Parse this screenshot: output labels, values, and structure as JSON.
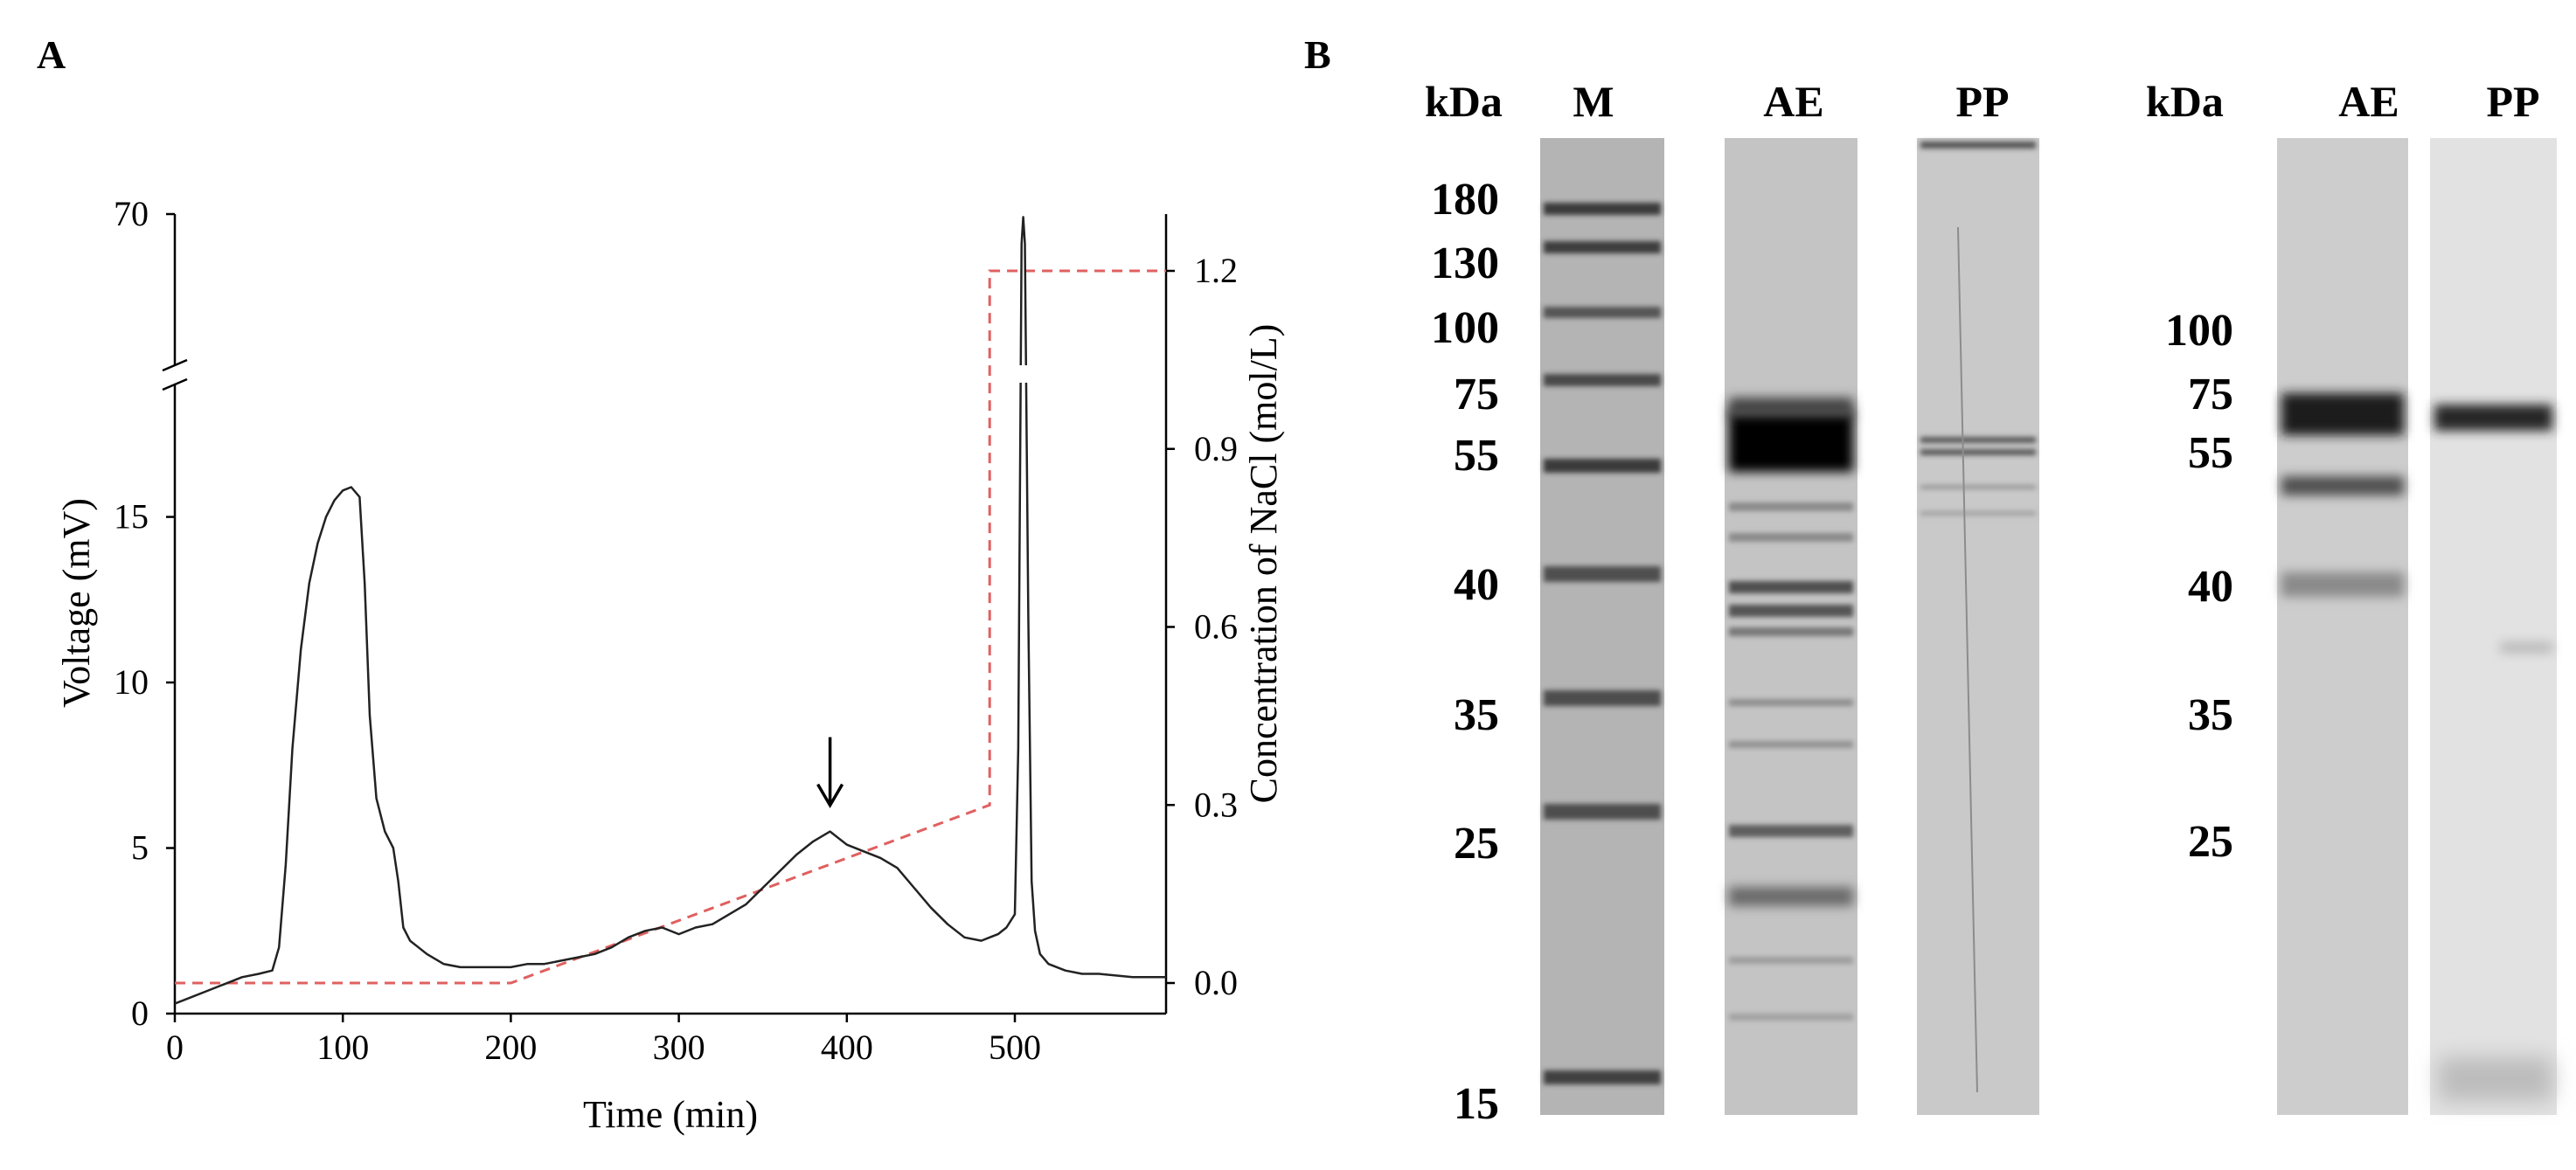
{
  "figure": {
    "panel_a_label": "A",
    "panel_b_label": "B"
  },
  "chart_data": [
    {
      "type": "line",
      "title": "",
      "xlabel": "Time (min)",
      "ylabel": "Voltage (mV)",
      "y2label": "Concentration of NaCl (mol/L)",
      "xlim": [
        0,
        590
      ],
      "ylim": [
        0,
        19
      ],
      "ylim_break_top": 70,
      "y2lim": [
        0,
        1.3
      ],
      "xticks": [
        "0",
        "100",
        "200",
        "300",
        "400",
        "500"
      ],
      "yticks": [
        "0",
        "5",
        "10",
        "15"
      ],
      "ytick_top": "70",
      "y2ticks": [
        "0.0",
        "0.3",
        "0.6",
        "0.9",
        "1.2"
      ],
      "axis_break": true,
      "arrow_annotation_x": 390,
      "series": [
        {
          "axis": "left",
          "style": "solid",
          "color": "#000000",
          "x": [
            0,
            10,
            20,
            30,
            40,
            50,
            58,
            62,
            66,
            70,
            75,
            80,
            85,
            90,
            95,
            100,
            105,
            110,
            113,
            116,
            120,
            125,
            130,
            133,
            136,
            140,
            145,
            150,
            160,
            170,
            180,
            190,
            200,
            210,
            220,
            230,
            240,
            250,
            260,
            270,
            280,
            290,
            300,
            310,
            320,
            330,
            340,
            350,
            360,
            370,
            380,
            390,
            400,
            410,
            420,
            430,
            440,
            450,
            460,
            470,
            480,
            485,
            490,
            495,
            500,
            502,
            504,
            505,
            506,
            508,
            510,
            512,
            515,
            520,
            530,
            540,
            550,
            560,
            570,
            580,
            590
          ],
          "y": [
            0.3,
            0.5,
            0.7,
            0.9,
            1.1,
            1.2,
            1.3,
            2.0,
            4.5,
            8.0,
            11.0,
            13.0,
            14.2,
            15.0,
            15.5,
            15.8,
            15.9,
            15.6,
            13.0,
            9.0,
            6.5,
            5.5,
            5.0,
            4.0,
            2.6,
            2.2,
            2.0,
            1.8,
            1.5,
            1.4,
            1.4,
            1.4,
            1.4,
            1.5,
            1.5,
            1.6,
            1.7,
            1.8,
            2.0,
            2.3,
            2.5,
            2.6,
            2.4,
            2.6,
            2.7,
            3.0,
            3.3,
            3.8,
            4.3,
            4.8,
            5.2,
            5.5,
            5.1,
            4.9,
            4.7,
            4.4,
            3.8,
            3.2,
            2.7,
            2.3,
            2.2,
            2.3,
            2.4,
            2.6,
            3.0,
            8.0,
            60.0,
            69.0,
            60.0,
            12.0,
            4.0,
            2.5,
            1.8,
            1.5,
            1.3,
            1.2,
            1.2,
            1.15,
            1.1,
            1.1,
            1.1
          ]
        },
        {
          "axis": "right",
          "style": "dashed",
          "color": "#e06060",
          "x": [
            0,
            200,
            485,
            485,
            590
          ],
          "y": [
            0.0,
            0.0,
            0.3,
            1.2,
            1.2
          ]
        }
      ]
    }
  ],
  "gel": {
    "left": {
      "kda_header": "kDa",
      "lanes": [
        "M",
        "AE",
        "PP"
      ],
      "markers": [
        "180",
        "130",
        "100",
        "75",
        "55",
        "40",
        "35",
        "25",
        "15"
      ]
    },
    "right": {
      "kda_header": "kDa",
      "lanes": [
        "AE",
        "PP"
      ],
      "markers": [
        "100",
        "75",
        "55",
        "40",
        "35",
        "25"
      ]
    }
  }
}
